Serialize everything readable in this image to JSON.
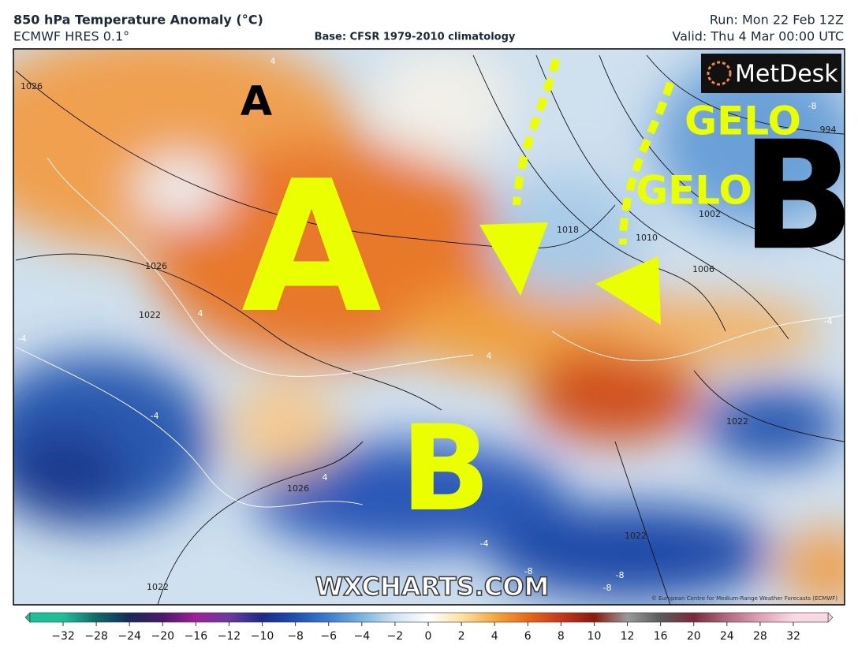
{
  "header": {
    "title": "850 hPa Temperature Anomaly (°C)",
    "model": "ECMWF HRES 0.1°",
    "base": "Base: CFSR 1979-2010 climatology",
    "run": "Run: Mon 22 Feb 12Z",
    "valid": "Valid: Thu 4 Mar 00:00 UTC"
  },
  "map": {
    "logo": "MetDesk",
    "watermark": "WXCHARTS.COM",
    "credit": "© European Centre for Medium-Range Weather Forecasts (ECMWF)",
    "annotations": [
      "A",
      "A",
      "B",
      "B",
      "GELO",
      "GELO"
    ],
    "contour_labels": [
      "1026",
      "1026",
      "1022",
      "1018",
      "1010",
      "1002",
      "994",
      "1006",
      "1022",
      "1026",
      "1022",
      "1022",
      "-8",
      "-4",
      "-4",
      "-4",
      "4",
      "4",
      "4",
      "-8",
      "-8",
      "-8",
      "-4",
      "4"
    ]
  },
  "colorbar": {
    "labels": [
      "−32",
      "−28",
      "−24",
      "−20",
      "−16",
      "−12",
      "−10",
      "−8",
      "−6",
      "−4",
      "−2",
      "0",
      "2",
      "4",
      "6",
      "8",
      "10",
      "12",
      "16",
      "20",
      "24",
      "28",
      "32"
    ],
    "colors": [
      "#1fbf9a",
      "#0f6a6a",
      "#162a5a",
      "#4a1a6a",
      "#a0209a",
      "#6a3aa0",
      "#1a2a8a",
      "#1f4fb0",
      "#3a7ed0",
      "#7ab4e0",
      "#cfe3f2",
      "#ffffff",
      "#fbe3a0",
      "#f5a840",
      "#e86a18",
      "#c8381a",
      "#8a1a10",
      "#9a9a9a",
      "#5a5a5a",
      "#7a2a3a",
      "#b06a80",
      "#e0a0b8",
      "#f8d8e4"
    ]
  }
}
